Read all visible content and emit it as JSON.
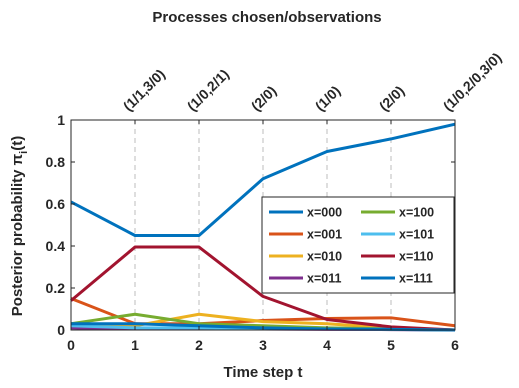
{
  "chart_data": {
    "type": "line",
    "title": "Processes chosen/observations",
    "xlabel": "Time step t",
    "ylabel": "Posterior probability π_i(t)",
    "x": [
      0,
      1,
      2,
      3,
      4,
      5,
      6
    ],
    "xlim": [
      0,
      6
    ],
    "ylim": [
      0,
      1
    ],
    "xticks": [
      "0",
      "1",
      "2",
      "3",
      "4",
      "5",
      "6"
    ],
    "yticks": [
      "0",
      "0.2",
      "0.4",
      "0.6",
      "0.8",
      "1"
    ],
    "top_labels": [
      "(1/1,3/0)",
      "(1/0,2/1)",
      "(2/0)",
      "(1/0)",
      "(2/0)",
      "(1/0,2/0,3/0)"
    ],
    "vertical_gridlines": "dashed",
    "legend_position": "center-right",
    "series": [
      {
        "name": "x=000",
        "color": "#0072BD",
        "values": [
          0.61,
          0.45,
          0.45,
          0.72,
          0.85,
          0.91,
          0.98
        ]
      },
      {
        "name": "x=001",
        "color": "#D95319",
        "values": [
          0.15,
          0.03,
          0.03,
          0.045,
          0.055,
          0.058,
          0.02
        ]
      },
      {
        "name": "x=010",
        "color": "#EDB120",
        "values": [
          0.02,
          0.02,
          0.075,
          0.04,
          0.03,
          0.01,
          0.0
        ]
      },
      {
        "name": "x=011",
        "color": "#7E2F8E",
        "values": [
          0.01,
          0.005,
          0.005,
          0.005,
          0.003,
          0.002,
          0.0
        ]
      },
      {
        "name": "x=100",
        "color": "#77AC30",
        "values": [
          0.03,
          0.075,
          0.03,
          0.02,
          0.01,
          0.005,
          0.0
        ]
      },
      {
        "name": "x=101",
        "color": "#4DBEEE",
        "values": [
          0.02,
          0.01,
          0.01,
          0.008,
          0.005,
          0.003,
          0.0
        ]
      },
      {
        "name": "x=110",
        "color": "#A2142F",
        "values": [
          0.14,
          0.395,
          0.395,
          0.16,
          0.05,
          0.015,
          0.0
        ]
      },
      {
        "name": "x=111",
        "color": "#0072BD",
        "values": [
          0.03,
          0.03,
          0.02,
          0.01,
          0.005,
          0.003,
          0.0
        ]
      }
    ]
  }
}
